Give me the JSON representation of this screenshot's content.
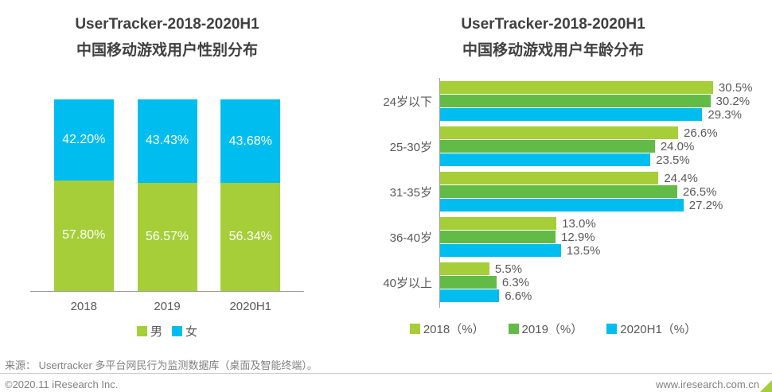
{
  "chart_data": [
    {
      "type": "bar",
      "variant": "stacked-vertical",
      "title": "UserTracker-2018-2020H1",
      "subtitle": "中国移动游戏用户性别分布",
      "categories": [
        "2018",
        "2019",
        "2020H1"
      ],
      "series": [
        {
          "name": "男",
          "color": "#a5ce39",
          "values": [
            57.8,
            56.57,
            56.34
          ]
        },
        {
          "name": "女",
          "color": "#00bdf0",
          "values": [
            42.2,
            43.43,
            43.68
          ]
        }
      ],
      "value_suffix": "%",
      "value_decimals": 2,
      "ylim": [
        0,
        100
      ],
      "grid": false,
      "legend_position": "bottom"
    },
    {
      "type": "bar",
      "variant": "grouped-horizontal",
      "title": "UserTracker-2018-2020H1",
      "subtitle": "中国移动游戏用户年龄分布",
      "categories": [
        "24岁以下",
        "25-30岁",
        "31-35岁",
        "36-40岁",
        "40岁以上"
      ],
      "series": [
        {
          "name": "2018（%）",
          "color": "#a5ce39",
          "values": [
            30.5,
            26.6,
            24.4,
            13.0,
            5.5
          ]
        },
        {
          "name": "2019（%）",
          "color": "#62bb46",
          "values": [
            30.2,
            24.0,
            26.5,
            12.9,
            6.3
          ]
        },
        {
          "name": "2020H1（%）",
          "color": "#00bdf0",
          "values": [
            29.3,
            23.5,
            27.2,
            13.5,
            6.6
          ]
        }
      ],
      "value_suffix": "%",
      "value_decimals": 1,
      "xlim": [
        0,
        33
      ],
      "grid": false,
      "legend_position": "bottom"
    }
  ],
  "footer": {
    "source": "来源： Usertracker 多平台网民行为监测数据库（桌面及智能终端）。",
    "copyright": "©2020.11 iResearch Inc.",
    "website": "www.iresearch.com.cn"
  },
  "colors": {
    "accent_green_light": "#a5ce39",
    "accent_green": "#62bb46",
    "accent_cyan": "#00bdf0",
    "title_text": "#404040",
    "label_text": "#595959",
    "footer_text": "#808080",
    "axis_line": "#9b9b9b"
  }
}
